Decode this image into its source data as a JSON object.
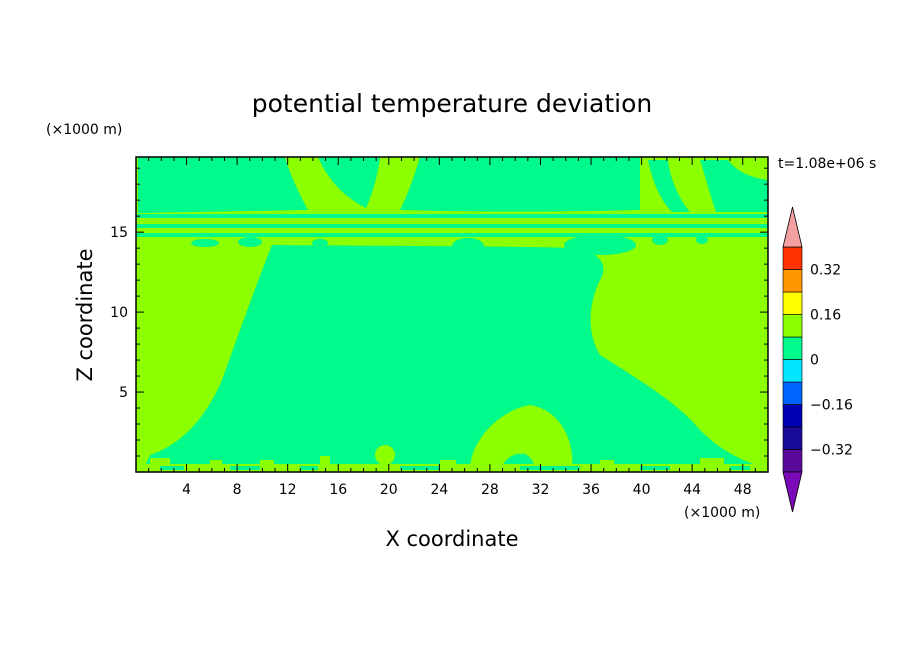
{
  "chart_data": {
    "type": "heatmap",
    "title": "potential temperature deviation",
    "xlabel": "X coordinate",
    "ylabel": "Z coordinate",
    "x_unit": "(×1000 m)",
    "y_unit": "(×1000 m)",
    "time_label": "t=1.08e+06 s",
    "xlim": [
      0,
      50
    ],
    "ylim": [
      0,
      19.7
    ],
    "x_ticks": [
      4,
      8,
      12,
      16,
      20,
      24,
      28,
      32,
      36,
      40,
      44,
      48
    ],
    "x_tick_labels": [
      "4",
      "8",
      "12",
      "16",
      "20",
      "24",
      "28",
      "32",
      "36",
      "40",
      "44",
      "48"
    ],
    "y_ticks": [
      5,
      10,
      15
    ],
    "y_tick_labels": [
      "5",
      "10",
      "15"
    ],
    "colorbar": {
      "levels": [
        -0.4,
        -0.32,
        -0.24,
        -0.16,
        -0.08,
        0,
        0.08,
        0.16,
        0.24,
        0.32,
        0.4
      ],
      "labeled_levels": [
        -0.32,
        -0.16,
        0,
        0.16,
        0.32
      ],
      "labels": [
        "−0.32",
        "−0.16",
        "0",
        "0.16",
        "0.32"
      ],
      "colors": [
        "#5a0a9a",
        "#1a0a9a",
        "#0000b4",
        "#0064ff",
        "#00e6ff",
        "#00fa8c",
        "#8cff00",
        "#ffff00",
        "#ff9600",
        "#ff3200"
      ],
      "under_color": "#7a0ab8",
      "over_color": "#f5a0a0"
    },
    "fields": {
      "background_value_range": [
        0,
        0.08
      ],
      "background_color": "#8cff00",
      "negative_region_color": "#00fa8c"
    }
  }
}
